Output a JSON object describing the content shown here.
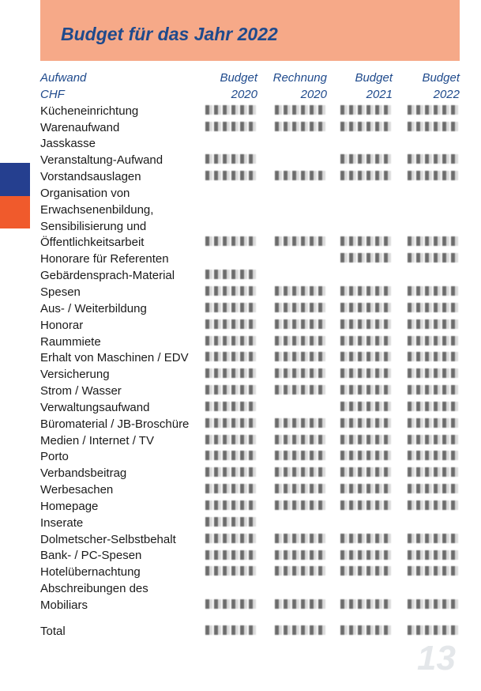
{
  "title": "Budget für das Jahr 2022",
  "colors": {
    "header_band": "#f6a988",
    "title": "#1f4a8c",
    "tab_blue": "#253f8f",
    "tab_orange": "#f05a2c"
  },
  "header": {
    "label_line1": "Aufwand",
    "label_line2": "CHF",
    "columns": [
      {
        "line1": "Budget",
        "line2": "2020"
      },
      {
        "line1": "Rechnung",
        "line2": "2020"
      },
      {
        "line1": "Budget",
        "line2": "2021"
      },
      {
        "line1": "Budget",
        "line2": "2022"
      }
    ]
  },
  "rows": [
    {
      "label": [
        "Kücheneinrichtung"
      ],
      "values": [
        1,
        1,
        1,
        1
      ]
    },
    {
      "label": [
        "Warenaufwand"
      ],
      "values": [
        1,
        1,
        1,
        1
      ]
    },
    {
      "label": [
        "Jasskasse"
      ],
      "values": [
        0,
        0,
        0,
        0
      ]
    },
    {
      "label": [
        "Veranstaltung-Aufwand"
      ],
      "values": [
        1,
        0,
        1,
        1
      ]
    },
    {
      "label": [
        "Vorstandsauslagen"
      ],
      "values": [
        1,
        1,
        1,
        1
      ]
    },
    {
      "label": [
        "Organisation von",
        "Erwachsenenbildung,",
        "Sensibilisierung und",
        "Öffentlichkeitsarbeit"
      ],
      "values": [
        1,
        1,
        1,
        1
      ]
    },
    {
      "label": [
        "Honorare für Referenten"
      ],
      "values": [
        0,
        0,
        1,
        1
      ]
    },
    {
      "label": [
        "Gebärdensprach-Material"
      ],
      "values": [
        1,
        0,
        0,
        0
      ]
    },
    {
      "label": [
        "Spesen"
      ],
      "values": [
        1,
        1,
        1,
        1
      ]
    },
    {
      "label": [
        "Aus- / Weiterbildung"
      ],
      "values": [
        1,
        1,
        1,
        1
      ]
    },
    {
      "label": [
        "Honorar"
      ],
      "values": [
        1,
        1,
        1,
        1
      ]
    },
    {
      "label": [
        "Raummiete"
      ],
      "values": [
        1,
        1,
        1,
        1
      ]
    },
    {
      "label": [
        "Erhalt von Maschinen / EDV"
      ],
      "values": [
        1,
        1,
        1,
        1
      ]
    },
    {
      "label": [
        "Versicherung"
      ],
      "values": [
        1,
        1,
        1,
        1
      ]
    },
    {
      "label": [
        "Strom / Wasser"
      ],
      "values": [
        1,
        1,
        1,
        1
      ]
    },
    {
      "label": [
        "Verwaltungsaufwand"
      ],
      "values": [
        1,
        0,
        1,
        1
      ]
    },
    {
      "label": [
        "Büromaterial / JB-Broschüre"
      ],
      "values": [
        1,
        1,
        1,
        1
      ]
    },
    {
      "label": [
        "Medien / Internet / TV"
      ],
      "values": [
        1,
        1,
        1,
        1
      ]
    },
    {
      "label": [
        "Porto"
      ],
      "values": [
        1,
        1,
        1,
        1
      ]
    },
    {
      "label": [
        "Verbandsbeitrag"
      ],
      "values": [
        1,
        1,
        1,
        1
      ]
    },
    {
      "label": [
        "Werbesachen"
      ],
      "values": [
        1,
        1,
        1,
        1
      ]
    },
    {
      "label": [
        "Homepage"
      ],
      "values": [
        1,
        1,
        1,
        1
      ]
    },
    {
      "label": [
        "Inserate"
      ],
      "values": [
        1,
        0,
        0,
        0
      ]
    },
    {
      "label": [
        "Dolmetscher-Selbstbehalt"
      ],
      "values": [
        1,
        1,
        1,
        1
      ]
    },
    {
      "label": [
        "Bank- / PC-Spesen"
      ],
      "values": [
        1,
        1,
        1,
        1
      ]
    },
    {
      "label": [
        "Hotelübernachtung"
      ],
      "values": [
        1,
        1,
        1,
        1
      ]
    },
    {
      "label": [
        "Abschreibungen des",
        "Mobiliars"
      ],
      "values": [
        1,
        1,
        1,
        1
      ]
    }
  ],
  "total": {
    "label": "Total",
    "values": [
      1,
      1,
      1,
      1
    ]
  },
  "page_number": "13"
}
